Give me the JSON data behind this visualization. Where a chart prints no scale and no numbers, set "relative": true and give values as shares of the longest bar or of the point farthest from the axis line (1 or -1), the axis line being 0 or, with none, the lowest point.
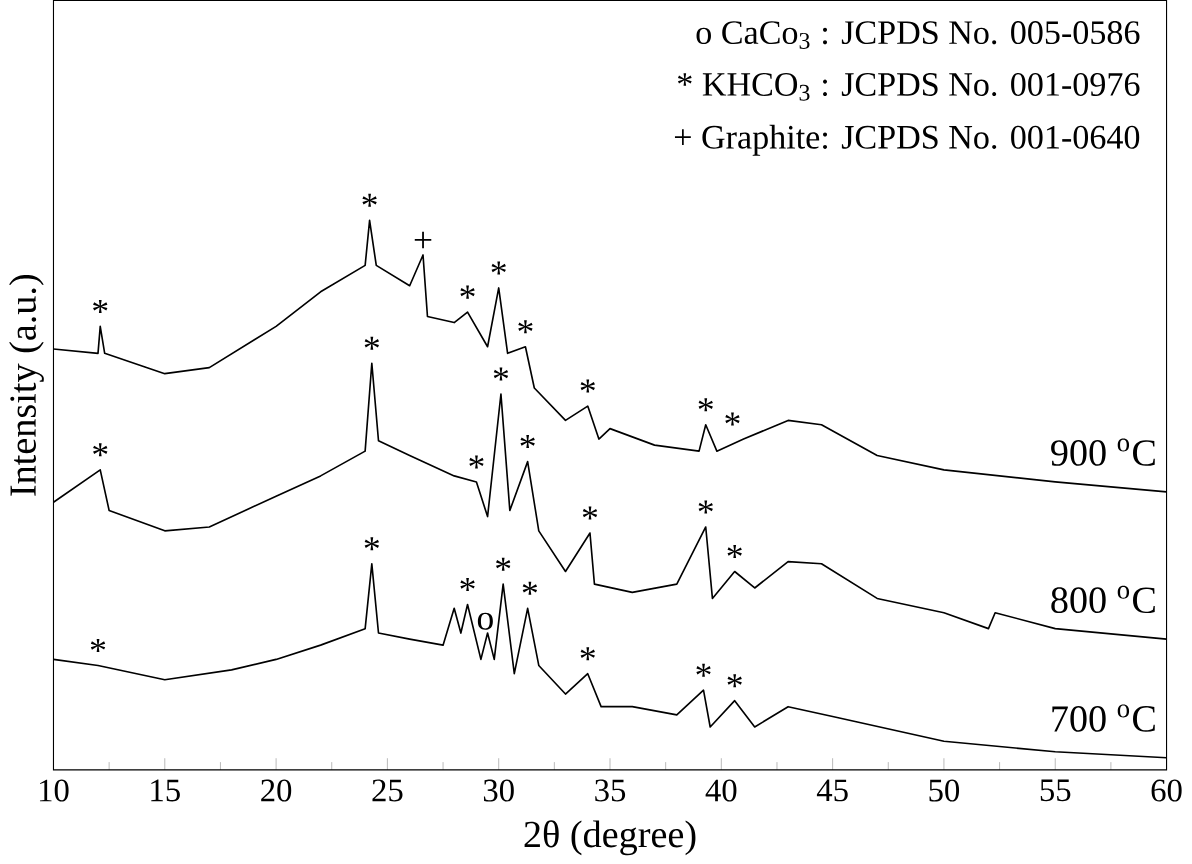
{
  "chart_data": {
    "type": "line",
    "relative": true,
    "xlabel": "2θ (degree)",
    "ylabel": "Intensity (a.u.)",
    "xlim": [
      10,
      60
    ],
    "xticks": [
      10,
      15,
      20,
      25,
      30,
      35,
      40,
      45,
      50,
      55,
      60
    ],
    "legend": false,
    "marker": "none",
    "line_style": "solid",
    "series": [
      {
        "name": "900 $^{o}$C",
        "color": "#000000",
        "x": [
          10,
          12,
          12.1,
          12.3,
          15,
          17,
          20,
          22,
          24,
          24.2,
          24.5,
          26,
          26.6,
          26.8,
          28,
          28.6,
          29.5,
          30.0,
          30.4,
          31.2,
          31.6,
          33,
          34,
          34.5,
          35,
          37,
          39,
          39.3,
          39.8,
          41,
          43,
          44.5,
          47,
          50,
          55,
          60
        ],
        "values": [
          0.766,
          0.758,
          0.807,
          0.758,
          0.721,
          0.732,
          0.807,
          0.87,
          0.918,
          1.0,
          0.918,
          0.881,
          0.937,
          0.825,
          0.814,
          0.833,
          0.77,
          0.877,
          0.758,
          0.77,
          0.695,
          0.636,
          0.662,
          0.602,
          0.621,
          0.591,
          0.58,
          0.628,
          0.58,
          0.602,
          0.636,
          0.628,
          0.572,
          0.546,
          0.524,
          0.506
        ]
      },
      {
        "name": "800 $^{o}$C",
        "color": "#000000",
        "x": [
          10,
          12.1,
          12.5,
          15,
          17,
          20,
          22,
          24,
          24.3,
          24.6,
          26,
          28,
          29,
          29.5,
          30.1,
          30.5,
          31.3,
          31.8,
          33,
          34.1,
          34.3,
          36,
          38,
          39.3,
          39.6,
          40.6,
          41.5,
          43,
          44.5,
          47,
          50,
          52,
          52.3,
          55,
          60
        ],
        "values": [
          0.487,
          0.546,
          0.472,
          0.435,
          0.442,
          0.498,
          0.535,
          0.58,
          0.74,
          0.599,
          0.572,
          0.535,
          0.524,
          0.461,
          0.684,
          0.472,
          0.561,
          0.435,
          0.361,
          0.431,
          0.338,
          0.323,
          0.338,
          0.442,
          0.312,
          0.361,
          0.331,
          0.379,
          0.375,
          0.312,
          0.286,
          0.257,
          0.286,
          0.257,
          0.238
        ]
      },
      {
        "name": "700 $^{o}$C",
        "color": "#000000",
        "x": [
          10,
          12,
          15,
          18,
          20,
          22,
          24,
          24.3,
          24.6,
          26,
          27.5,
          28,
          28.3,
          28.6,
          29.2,
          29.5,
          29.8,
          30.2,
          30.7,
          31.3,
          31.8,
          33,
          34,
          34.6,
          36,
          38,
          39.2,
          39.5,
          40.6,
          41.5,
          43,
          45,
          50,
          55,
          60
        ],
        "values": [
          0.201,
          0.19,
          0.164,
          0.182,
          0.201,
          0.227,
          0.257,
          0.375,
          0.249,
          0.238,
          0.227,
          0.294,
          0.249,
          0.301,
          0.201,
          0.249,
          0.201,
          0.338,
          0.175,
          0.294,
          0.19,
          0.138,
          0.175,
          0.115,
          0.115,
          0.1,
          0.145,
          0.078,
          0.126,
          0.078,
          0.115,
          0.097,
          0.052,
          0.033,
          0.022
        ]
      }
    ],
    "annotations": [
      "o CaCo$_{3}$ : JCPDS No. 005-0586",
      "* KHCO$_{3}$ : JCPDS No. 001-0976",
      "+ Graphite: JCPDS No. 001-0640",
      {
        "text": "*",
        "x": 12.1,
        "y": 0.807
      },
      {
        "text": "*",
        "x": 24.2,
        "y": 1.0
      },
      {
        "text": "+",
        "x": 26.6,
        "y": 0.937
      },
      {
        "text": "*",
        "x": 28.6,
        "y": 0.833
      },
      {
        "text": "*",
        "x": 30.0,
        "y": 0.877
      },
      {
        "text": "*",
        "x": 31.2,
        "y": 0.77
      },
      {
        "text": "*",
        "x": 34.0,
        "y": 0.662
      },
      {
        "text": "*",
        "x": 39.3,
        "y": 0.628
      },
      {
        "text": "*",
        "x": 40.5,
        "y": 0.602
      },
      {
        "text": "*",
        "x": 12.1,
        "y": 0.546
      },
      {
        "text": "*",
        "x": 24.3,
        "y": 0.74
      },
      {
        "text": "*",
        "x": 29,
        "y": 0.524
      },
      {
        "text": "*",
        "x": 30.1,
        "y": 0.684
      },
      {
        "text": "*",
        "x": 31.3,
        "y": 0.561
      },
      {
        "text": "*",
        "x": 34.1,
        "y": 0.431
      },
      {
        "text": "*",
        "x": 39.3,
        "y": 0.442
      },
      {
        "text": "*",
        "x": 40.6,
        "y": 0.361
      },
      {
        "text": "*",
        "x": 12,
        "y": 0.19
      },
      {
        "text": "*",
        "x": 24.3,
        "y": 0.375
      },
      {
        "text": "*",
        "x": 28.6,
        "y": 0.301
      },
      {
        "text": "o",
        "x": 29.4,
        "y": 0.249
      },
      {
        "text": "*",
        "x": 30.2,
        "y": 0.338
      },
      {
        "text": "*",
        "x": 31.4,
        "y": 0.294
      },
      {
        "text": "*",
        "x": 34.0,
        "y": 0.175
      },
      {
        "text": "*",
        "x": 39.2,
        "y": 0.145
      },
      {
        "text": "*",
        "x": 40.6,
        "y": 0.126
      }
    ]
  }
}
